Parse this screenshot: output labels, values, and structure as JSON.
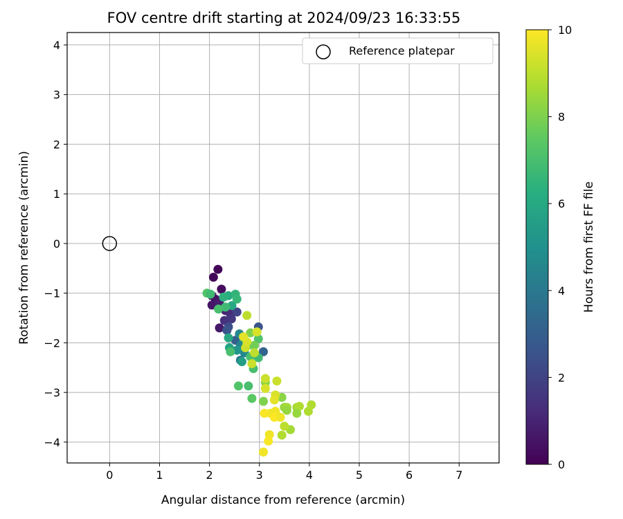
{
  "chart_data": {
    "type": "scatter",
    "title": "FOV centre drift starting at 2024/09/23 16:33:55",
    "xlabel": "Angular distance from reference (arcmin)",
    "ylabel": "Rotation from reference (arcmin)",
    "xlim": [
      -0.85,
      7.8
    ],
    "ylim": [
      -4.42,
      4.25
    ],
    "xticks": [
      0,
      1,
      2,
      3,
      4,
      5,
      6,
      7
    ],
    "yticks": [
      -4,
      -3,
      -2,
      -1,
      0,
      1,
      2,
      3,
      4
    ],
    "grid": true,
    "legend": {
      "placement": "top-right",
      "entries": [
        "Reference platepar"
      ]
    },
    "reference_point": {
      "label": "Reference platepar",
      "x": 0,
      "y": 0
    },
    "colorbar": {
      "label": "Hours from first FF file",
      "range": [
        0,
        10
      ],
      "ticks": [
        0,
        2,
        4,
        6,
        8,
        10
      ],
      "colormap": "viridis"
    },
    "points": [
      {
        "x": 2.17,
        "y": -0.52,
        "h": 0.1
      },
      {
        "x": 2.08,
        "y": -0.68,
        "h": 0.2
      },
      {
        "x": 2.24,
        "y": -0.92,
        "h": 0.3
      },
      {
        "x": 2.05,
        "y": -1.05,
        "h": 0.4
      },
      {
        "x": 2.12,
        "y": -1.12,
        "h": 0.5
      },
      {
        "x": 2.05,
        "y": -1.24,
        "h": 0.6
      },
      {
        "x": 2.2,
        "y": -1.2,
        "h": 0.8
      },
      {
        "x": 2.32,
        "y": -1.35,
        "h": 1.0
      },
      {
        "x": 2.42,
        "y": -1.42,
        "h": 1.2
      },
      {
        "x": 2.2,
        "y": -1.7,
        "h": 0.7
      },
      {
        "x": 2.3,
        "y": -1.55,
        "h": 1.4
      },
      {
        "x": 2.44,
        "y": -1.52,
        "h": 1.6
      },
      {
        "x": 2.38,
        "y": -1.68,
        "h": 2.4
      },
      {
        "x": 2.55,
        "y": -1.38,
        "h": 2.0
      },
      {
        "x": 2.35,
        "y": -1.75,
        "h": 2.6
      },
      {
        "x": 2.52,
        "y": -1.95,
        "h": 3.0
      },
      {
        "x": 2.98,
        "y": -1.68,
        "h": 2.6
      },
      {
        "x": 3.08,
        "y": -2.18,
        "h": 3.2
      },
      {
        "x": 2.62,
        "y": -2.35,
        "h": 4.0
      },
      {
        "x": 2.62,
        "y": -2.05,
        "h": 4.4
      },
      {
        "x": 2.6,
        "y": -1.82,
        "h": 4.6
      },
      {
        "x": 2.7,
        "y": -2.2,
        "h": 4.6
      },
      {
        "x": 2.68,
        "y": -1.95,
        "h": 5.0
      },
      {
        "x": 2.55,
        "y": -2.15,
        "h": 5.2
      },
      {
        "x": 2.65,
        "y": -2.38,
        "h": 5.6
      },
      {
        "x": 2.4,
        "y": -2.1,
        "h": 5.8
      },
      {
        "x": 2.38,
        "y": -1.9,
        "h": 6.0
      },
      {
        "x": 2.45,
        "y": -1.25,
        "h": 6.0
      },
      {
        "x": 2.38,
        "y": -1.05,
        "h": 6.2
      },
      {
        "x": 2.28,
        "y": -1.08,
        "h": 6.4
      },
      {
        "x": 2.52,
        "y": -1.02,
        "h": 6.5
      },
      {
        "x": 2.55,
        "y": -1.12,
        "h": 6.6
      },
      {
        "x": 2.32,
        "y": -1.28,
        "h": 6.8
      },
      {
        "x": 2.18,
        "y": -1.32,
        "h": 7.0
      },
      {
        "x": 1.95,
        "y": -1.0,
        "h": 7.2
      },
      {
        "x": 2.02,
        "y": -1.02,
        "h": 6.8
      },
      {
        "x": 2.42,
        "y": -2.18,
        "h": 7.0
      },
      {
        "x": 2.82,
        "y": -2.28,
        "h": 7.0
      },
      {
        "x": 2.98,
        "y": -1.92,
        "h": 7.2
      },
      {
        "x": 2.98,
        "y": -2.3,
        "h": 6.8
      },
      {
        "x": 2.88,
        "y": -2.52,
        "h": 7.0
      },
      {
        "x": 2.58,
        "y": -2.87,
        "h": 7.2
      },
      {
        "x": 2.78,
        "y": -2.87,
        "h": 7.0
      },
      {
        "x": 2.85,
        "y": -3.12,
        "h": 7.4
      },
      {
        "x": 2.78,
        "y": -2.05,
        "h": 7.6
      },
      {
        "x": 2.9,
        "y": -2.05,
        "h": 7.8
      },
      {
        "x": 2.82,
        "y": -1.8,
        "h": 8.0
      },
      {
        "x": 3.08,
        "y": -3.18,
        "h": 8.0
      },
      {
        "x": 3.12,
        "y": -2.8,
        "h": 8.2
      },
      {
        "x": 3.45,
        "y": -3.1,
        "h": 8.2
      },
      {
        "x": 3.5,
        "y": -3.3,
        "h": 8.4
      },
      {
        "x": 3.55,
        "y": -3.3,
        "h": 8.6
      },
      {
        "x": 3.75,
        "y": -3.3,
        "h": 8.6
      },
      {
        "x": 3.8,
        "y": -3.28,
        "h": 8.8
      },
      {
        "x": 3.98,
        "y": -3.38,
        "h": 8.8
      },
      {
        "x": 4.04,
        "y": -3.25,
        "h": 8.8
      },
      {
        "x": 3.75,
        "y": -3.42,
        "h": 8.4
      },
      {
        "x": 3.62,
        "y": -3.75,
        "h": 8.6
      },
      {
        "x": 3.45,
        "y": -3.86,
        "h": 8.8
      },
      {
        "x": 3.5,
        "y": -3.68,
        "h": 9.0
      },
      {
        "x": 3.55,
        "y": -3.36,
        "h": 8.4
      },
      {
        "x": 2.75,
        "y": -1.45,
        "h": 9.0
      },
      {
        "x": 2.9,
        "y": -2.2,
        "h": 9.0
      },
      {
        "x": 2.85,
        "y": -2.42,
        "h": 9.2
      },
      {
        "x": 2.72,
        "y": -2.1,
        "h": 9.2
      },
      {
        "x": 2.75,
        "y": -1.98,
        "h": 9.4
      },
      {
        "x": 2.95,
        "y": -1.78,
        "h": 9.4
      },
      {
        "x": 2.68,
        "y": -1.88,
        "h": 9.6
      },
      {
        "x": 3.12,
        "y": -2.72,
        "h": 9.2
      },
      {
        "x": 3.35,
        "y": -2.77,
        "h": 9.2
      },
      {
        "x": 3.12,
        "y": -2.92,
        "h": 9.4
      },
      {
        "x": 3.32,
        "y": -3.05,
        "h": 9.4
      },
      {
        "x": 3.3,
        "y": -3.15,
        "h": 9.6
      },
      {
        "x": 3.32,
        "y": -3.38,
        "h": 9.8
      },
      {
        "x": 3.22,
        "y": -3.42,
        "h": 9.8
      },
      {
        "x": 3.1,
        "y": -3.42,
        "h": 9.9
      },
      {
        "x": 3.3,
        "y": -3.5,
        "h": 10.0
      },
      {
        "x": 3.42,
        "y": -3.5,
        "h": 9.8
      },
      {
        "x": 3.2,
        "y": -3.85,
        "h": 9.8
      },
      {
        "x": 3.18,
        "y": -3.98,
        "h": 9.9
      },
      {
        "x": 3.08,
        "y": -4.2,
        "h": 9.8
      }
    ]
  }
}
